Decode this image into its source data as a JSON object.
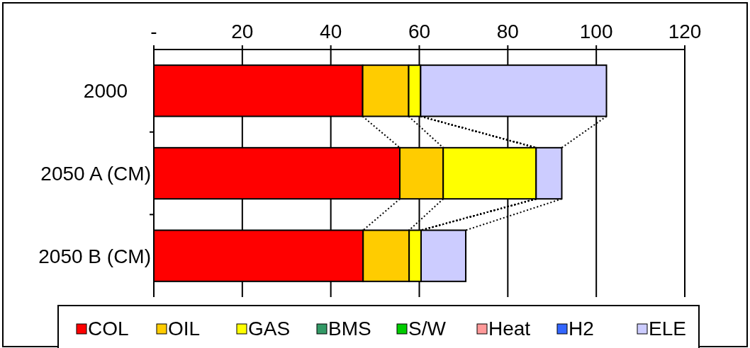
{
  "chart_data": {
    "type": "bar",
    "orientation": "horizontal",
    "stacked": true,
    "categories": [
      "2000",
      "2050 A (CM)",
      "2050 B (CM)"
    ],
    "series": [
      {
        "name": "COL",
        "color": "#ff0000",
        "values": [
          47.2,
          55.6,
          47.3
        ]
      },
      {
        "name": "OIL",
        "color": "#ffcc00",
        "values": [
          10.4,
          9.8,
          10.4
        ]
      },
      {
        "name": "GAS",
        "color": "#ffff00",
        "values": [
          2.7,
          21.0,
          2.7
        ]
      },
      {
        "name": "BMS",
        "color": "#339966",
        "values": [
          0,
          0,
          0
        ]
      },
      {
        "name": "S/W",
        "color": "#00cc00",
        "values": [
          0,
          0,
          0
        ]
      },
      {
        "name": "Heat",
        "color": "#ff9999",
        "values": [
          0,
          0,
          0
        ]
      },
      {
        "name": "H2",
        "color": "#3366ff",
        "values": [
          0,
          0,
          0
        ]
      },
      {
        "name": "ELE",
        "color": "#ccccff",
        "values": [
          42.0,
          5.8,
          10.1
        ]
      }
    ],
    "xlim": [
      0,
      120
    ],
    "xticks": [
      {
        "value": 0,
        "label": "-"
      },
      20,
      40,
      60,
      80,
      100,
      120
    ],
    "grid": "x",
    "legend": "bottom"
  }
}
